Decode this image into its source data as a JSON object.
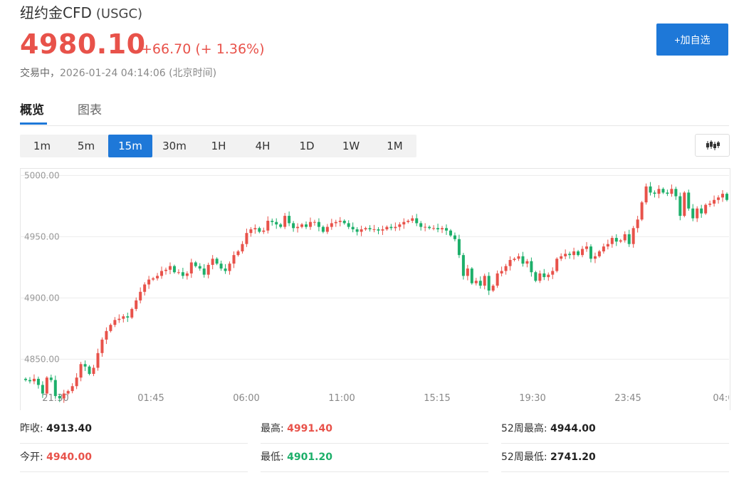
{
  "header": {
    "title": "纽约金CFD",
    "code": "(USGC)",
    "price": "4980.10",
    "change": "+66.70 (+ 1.36%)",
    "status": "交易中，",
    "timestamp": "2026-01-24 04:14:06",
    "timezone": "(北京时间)",
    "add_label": "+加自选"
  },
  "tabs": [
    {
      "label": "概览",
      "active": true
    },
    {
      "label": "图表",
      "active": false
    }
  ],
  "periods": [
    {
      "label": "1m",
      "active": false
    },
    {
      "label": "5m",
      "active": false
    },
    {
      "label": "15m",
      "active": true
    },
    {
      "label": "30m",
      "active": false
    },
    {
      "label": "1H",
      "active": false
    },
    {
      "label": "4H",
      "active": false
    },
    {
      "label": "1D",
      "active": false
    },
    {
      "label": "1W",
      "active": false
    },
    {
      "label": "1M",
      "active": false
    }
  ],
  "chart_type_icon": "candlestick-icon",
  "colors": {
    "up": "#e8524a",
    "down": "#1daf6a",
    "accent": "#1e78d8"
  },
  "chart_data": {
    "type": "candlestick",
    "y_ticks": [
      "5000.00",
      "4950.00",
      "4900.00",
      "4850.00"
    ],
    "x_ticks": [
      "21:30",
      "01:45",
      "06:00",
      "11:00",
      "15:15",
      "19:30",
      "23:45",
      "04:0"
    ],
    "ylim": [
      4820,
      5006
    ],
    "grid": true,
    "close": [
      4833,
      4832,
      4834,
      4829,
      4822,
      4835,
      4833,
      4820,
      4818,
      4822,
      4824,
      4828,
      4835,
      4846,
      4844,
      4838,
      4843,
      4855,
      4866,
      4873,
      4878,
      4882,
      4883,
      4885,
      4884,
      4891,
      4898,
      4905,
      4911,
      4915,
      4916,
      4918,
      4922,
      4923,
      4926,
      4921,
      4921,
      4918,
      4920,
      4929,
      4926,
      4924,
      4919,
      4927,
      4932,
      4928,
      4924,
      4922,
      4928,
      4935,
      4938,
      4944,
      4953,
      4956,
      4957,
      4954,
      4955,
      4963,
      4962,
      4960,
      4958,
      4967,
      4961,
      4957,
      4958,
      4960,
      4958,
      4962,
      4962,
      4958,
      4954,
      4958,
      4961,
      4962,
      4963,
      4961,
      4958,
      4956,
      4954,
      4956,
      4957,
      4956,
      4956,
      4955,
      4956,
      4958,
      4957,
      4958,
      4960,
      4962,
      4963,
      4965,
      4961,
      4958,
      4958,
      4957,
      4957,
      4956,
      4957,
      4955,
      4951,
      4948,
      4935,
      4918,
      4924,
      4912,
      4914,
      4910,
      4918,
      4906,
      4910,
      4920,
      4922,
      4926,
      4931,
      4932,
      4934,
      4928,
      4930,
      4921,
      4914,
      4920,
      4917,
      4919,
      4922,
      4932,
      4934,
      4936,
      4935,
      4938,
      4935,
      4940,
      4942,
      4932,
      4934,
      4938,
      4942,
      4944,
      4949,
      4946,
      4947,
      4952,
      4944,
      4957,
      4964,
      4978,
      4991,
      4986,
      4985,
      4989,
      4986,
      4985,
      4989,
      4983,
      4967,
      4986,
      4973,
      4965,
      4973,
      4969,
      4976,
      4977,
      4980,
      4982,
      4985,
      4980
    ]
  },
  "stats": [
    [
      {
        "label": "昨收:",
        "value": "4913.40",
        "tone": "plain"
      },
      {
        "label": "最高:",
        "value": "4991.40",
        "tone": "red"
      },
      {
        "label": "52周最高:",
        "value": "4944.00",
        "tone": "plain"
      }
    ],
    [
      {
        "label": "今开:",
        "value": "4940.00",
        "tone": "red"
      },
      {
        "label": "最低:",
        "value": "4901.20",
        "tone": "green"
      },
      {
        "label": "52周最低:",
        "value": "2741.20",
        "tone": "plain"
      }
    ]
  ]
}
